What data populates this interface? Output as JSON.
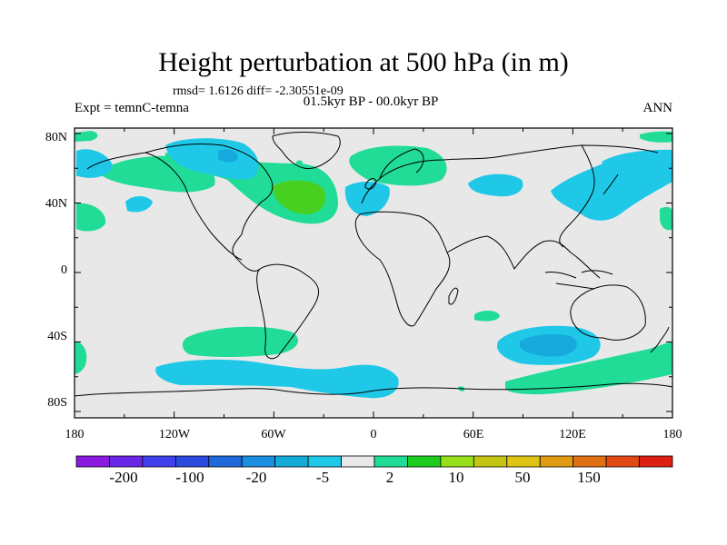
{
  "title": "Height perturbation at 500 hPa (in m)",
  "stats_line": "rmsd= 1.6126 diff= -2.30551e-09",
  "experiment_label": "Expt = temnC-temna",
  "period_label": "01.5kyr BP - 00.0kyr BP",
  "season_label": "ANN",
  "axes": {
    "lat_ticks": [
      "80N",
      "40N",
      "0",
      "40S",
      "80S"
    ],
    "lon_ticks": [
      "180",
      "120W",
      "60W",
      "0",
      "60E",
      "120E",
      "180"
    ]
  },
  "colorbar": {
    "labels": [
      "-200",
      "-100",
      "-20",
      "-5",
      "2",
      "10",
      "50",
      "150"
    ],
    "colors": [
      "#8a1ae0",
      "#6a26e6",
      "#4040ec",
      "#2a4ae0",
      "#1f68dc",
      "#1a8ee0",
      "#14aad8",
      "#1ec8e8",
      "#e8e8e8",
      "#1edc96",
      "#1ecc20",
      "#96e01a",
      "#c4c414",
      "#e0c414",
      "#e09a14",
      "#e07014",
      "#e04814",
      "#dc1e14"
    ]
  },
  "map_colors": {
    "background": "#e8e8e8",
    "positive_weak": "#20dc96",
    "positive_mid": "#48d020",
    "negative_weak": "#20c8e8",
    "negative_mid": "#16aadc",
    "negative_strong": "#1a96d8"
  }
}
